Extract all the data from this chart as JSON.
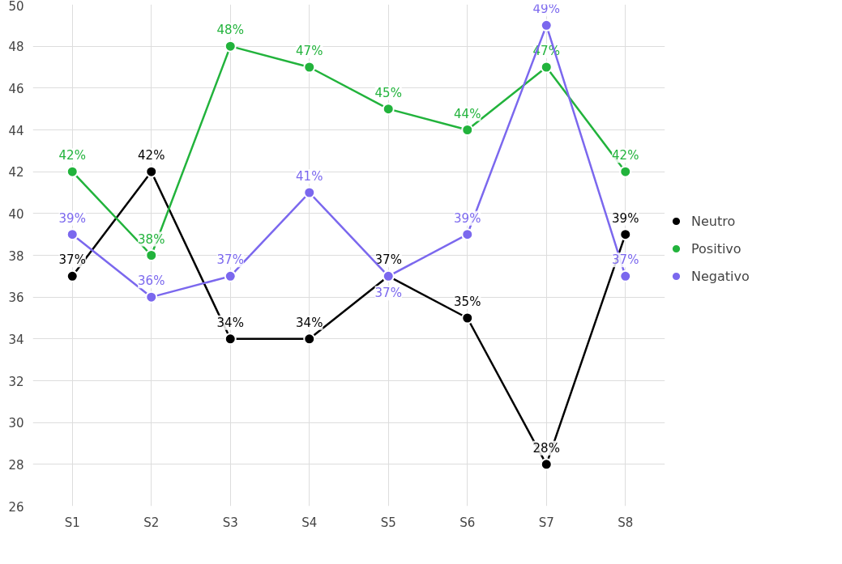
{
  "chart_data": {
    "type": "line",
    "categories": [
      "S1",
      "S2",
      "S3",
      "S4",
      "S5",
      "S6",
      "S7",
      "S8"
    ],
    "ylim": [
      26,
      50
    ],
    "yticks": [
      26,
      28,
      30,
      32,
      34,
      36,
      38,
      40,
      42,
      44,
      46,
      48,
      50
    ],
    "grid": true,
    "legend": "right",
    "marker": "circle",
    "line_style": "solid",
    "series": [
      {
        "name": "Neutro",
        "color": "#000000",
        "values": [
          37,
          42,
          34,
          34,
          37,
          35,
          28,
          39
        ],
        "value_labels": [
          "37%",
          "42%",
          "34%",
          "34%",
          "37%",
          "35%",
          "28%",
          "39%"
        ]
      },
      {
        "name": "Positivo",
        "color": "#22b33c",
        "values": [
          42,
          38,
          48,
          47,
          45,
          44,
          47,
          42
        ],
        "value_labels": [
          "42%",
          "38%",
          "48%",
          "47%",
          "45%",
          "44%",
          "47%",
          "42%"
        ]
      },
      {
        "name": "Negativo",
        "color": "#7b68ee",
        "values": [
          39,
          36,
          37,
          41,
          37,
          39,
          49,
          37
        ],
        "value_labels": [
          "39%",
          "36%",
          "37%",
          "41%",
          "37%",
          "39%",
          "49%",
          "37%"
        ]
      }
    ]
  }
}
